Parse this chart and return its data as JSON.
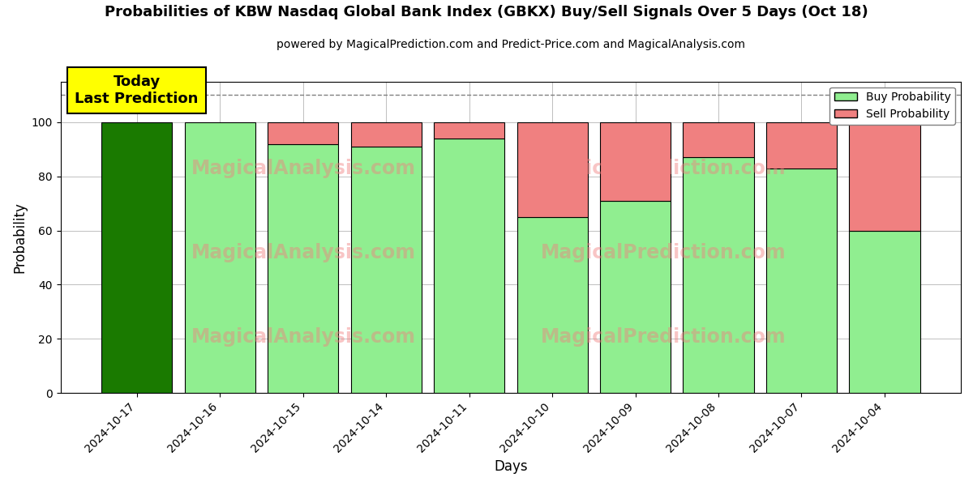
{
  "title": "Probabilities of KBW Nasdaq Global Bank Index (GBKX) Buy/Sell Signals Over 5 Days (Oct 18)",
  "subtitle": "powered by MagicalPrediction.com and Predict-Price.com and MagicalAnalysis.com",
  "xlabel": "Days",
  "ylabel": "Probability",
  "categories": [
    "2024-10-17",
    "2024-10-16",
    "2024-10-15",
    "2024-10-14",
    "2024-10-11",
    "2024-10-10",
    "2024-10-09",
    "2024-10-08",
    "2024-10-07",
    "2024-10-04"
  ],
  "buy_values": [
    100,
    100,
    92,
    91,
    94,
    65,
    71,
    87,
    83,
    60
  ],
  "sell_values": [
    0,
    0,
    8,
    9,
    6,
    35,
    29,
    13,
    17,
    40
  ],
  "today_bar_color": "#1a7a00",
  "buy_color": "#90EE90",
  "sell_color": "#F08080",
  "today_annotation_text": "Today\nLast Prediction",
  "today_annotation_bg": "#FFFF00",
  "dashed_line_y": 110,
  "ylim": [
    0,
    115
  ],
  "yticks": [
    0,
    20,
    40,
    60,
    80,
    100
  ],
  "legend_buy_label": "Buy Probability",
  "legend_sell_label": "Sell Probability",
  "figsize": [
    12,
    6
  ],
  "dpi": 100
}
